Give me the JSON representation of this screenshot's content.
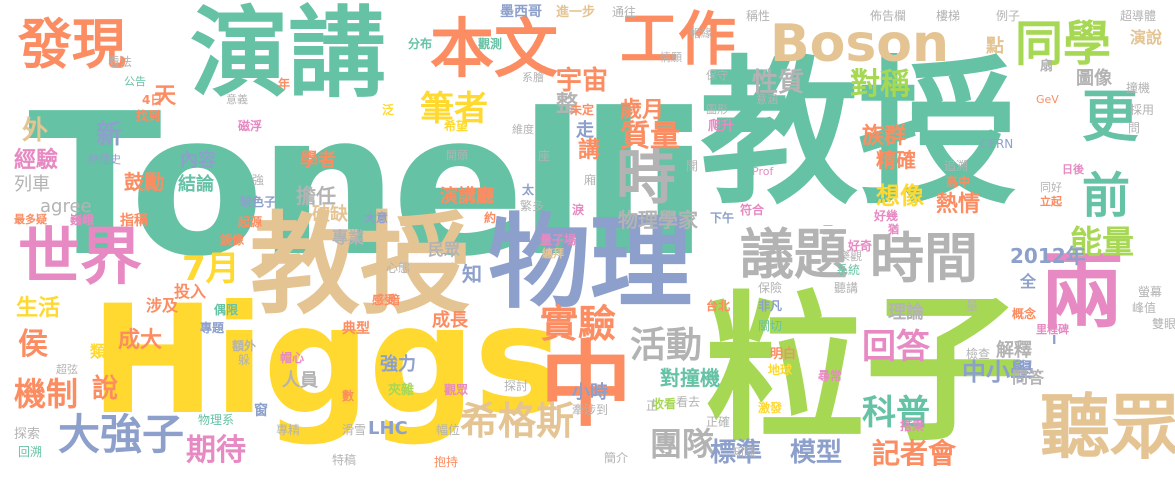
{
  "palette": {
    "green": "#66c2a5",
    "orange": "#fc8d62",
    "blue": "#8da0cb",
    "pink": "#e78ac3",
    "lime": "#a6d854",
    "yellow": "#ffd92f",
    "tan": "#e5c494",
    "gray": "#b3b3b3"
  },
  "words": [
    {
      "text": "Tonelli",
      "color": "green"
    },
    {
      "text": "Higgs",
      "color": "yellow"
    },
    {
      "text": "教授",
      "color": "green"
    },
    {
      "text": "粒子",
      "color": "lime"
    },
    {
      "text": "演講",
      "color": "green"
    },
    {
      "text": "物理",
      "color": "blue"
    },
    {
      "text": "教授",
      "color": "tan"
    },
    {
      "text": "本文",
      "color": "orange"
    },
    {
      "text": "工作",
      "color": "orange"
    },
    {
      "text": "發現",
      "color": "orange"
    },
    {
      "text": "Boson",
      "color": "tan"
    },
    {
      "text": "同學",
      "color": "lime"
    },
    {
      "text": "世界",
      "color": "pink"
    },
    {
      "text": "議題",
      "color": "gray"
    },
    {
      "text": "時間",
      "color": "gray"
    },
    {
      "text": "聽眾",
      "color": "tan"
    },
    {
      "text": "兩",
      "color": "pink"
    },
    {
      "text": "中",
      "color": "orange"
    },
    {
      "text": "時",
      "color": "gray"
    },
    {
      "text": "更",
      "color": "green"
    },
    {
      "text": "前",
      "color": "green"
    },
    {
      "text": "希格斯",
      "color": "tan"
    },
    {
      "text": "大強子",
      "color": "blue"
    },
    {
      "text": "實驗",
      "color": "orange"
    },
    {
      "text": "活動",
      "color": "gray"
    },
    {
      "text": "回答",
      "color": "pink"
    },
    {
      "text": "能量",
      "color": "lime"
    },
    {
      "text": "科普",
      "color": "green"
    },
    {
      "text": "團隊",
      "color": "gray"
    },
    {
      "text": "標準",
      "color": "blue"
    },
    {
      "text": "模型",
      "color": "blue"
    },
    {
      "text": "期待",
      "color": "pink"
    },
    {
      "text": "機制",
      "color": "orange"
    },
    {
      "text": "7月",
      "color": "yellow"
    },
    {
      "text": "筆者",
      "color": "yellow"
    },
    {
      "text": "質量",
      "color": "orange"
    },
    {
      "text": "對稱",
      "color": "lime"
    },
    {
      "text": "宇宙",
      "color": "orange"
    },
    {
      "text": "性質",
      "color": "gray"
    },
    {
      "text": "記者會",
      "color": "orange"
    },
    {
      "text": "中小學",
      "color": "blue"
    },
    {
      "text": "對撞機",
      "color": "green"
    },
    {
      "text": "2012年",
      "color": "blue"
    },
    {
      "text": "族群",
      "color": "orange"
    },
    {
      "text": "精確",
      "color": "orange"
    },
    {
      "text": "想像",
      "color": "yellow"
    },
    {
      "text": "熱情",
      "color": "orange"
    },
    {
      "text": "歲月",
      "color": "orange"
    },
    {
      "text": "物理學家",
      "color": "gray"
    },
    {
      "text": "演講廳",
      "color": "orange"
    },
    {
      "text": "經驗",
      "color": "pink"
    },
    {
      "text": "鼓勵",
      "color": "orange"
    },
    {
      "text": "結論",
      "color": "green"
    },
    {
      "text": "內容",
      "color": "blue"
    },
    {
      "text": "學者",
      "color": "orange"
    },
    {
      "text": "列車",
      "color": "gray"
    },
    {
      "text": "agree",
      "color": "gray"
    },
    {
      "text": "生活",
      "color": "yellow"
    },
    {
      "text": "侯",
      "color": "orange"
    },
    {
      "text": "說",
      "color": "orange"
    },
    {
      "text": "成大",
      "color": "orange"
    },
    {
      "text": "涉及",
      "color": "orange"
    },
    {
      "text": "投入",
      "color": "orange"
    },
    {
      "text": "擔任",
      "color": "gray"
    },
    {
      "text": "破缺",
      "color": "tan"
    },
    {
      "text": "專業",
      "color": "gray"
    },
    {
      "text": "民眾",
      "color": "gray"
    },
    {
      "text": "人員",
      "color": "gray"
    },
    {
      "text": "強力",
      "color": "blue"
    },
    {
      "text": "LHC",
      "color": "blue"
    },
    {
      "text": "小時",
      "color": "blue"
    },
    {
      "text": "成長",
      "color": "orange"
    },
    {
      "text": "知",
      "color": "blue"
    },
    {
      "text": "理論",
      "color": "gray"
    },
    {
      "text": "解釋",
      "color": "gray"
    },
    {
      "text": "問答",
      "color": "gray"
    },
    {
      "text": "新",
      "color": "blue"
    },
    {
      "text": "外",
      "color": "tan"
    },
    {
      "text": "天",
      "color": "orange"
    },
    {
      "text": "整",
      "color": "gray"
    },
    {
      "text": "走",
      "color": "blue"
    },
    {
      "text": "講",
      "color": "orange"
    },
    {
      "text": "圖像",
      "color": "gray"
    },
    {
      "text": "點",
      "color": "tan"
    },
    {
      "text": "演說",
      "color": "tan"
    },
    {
      "text": "墨西哥",
      "color": "blue"
    },
    {
      "text": "進一步",
      "color": "tan"
    },
    {
      "text": "通往",
      "color": "gray"
    },
    {
      "text": "看法",
      "color": "gray"
    },
    {
      "text": "分布",
      "color": "green"
    },
    {
      "text": "觀測",
      "color": "green"
    },
    {
      "text": "稱性",
      "color": "gray"
    },
    {
      "text": "佈告欄",
      "color": "gray"
    },
    {
      "text": "樓梯",
      "color": "gray"
    },
    {
      "text": "例子",
      "color": "gray"
    },
    {
      "text": "超導體",
      "color": "gray"
    },
    {
      "text": "撞機",
      "color": "gray"
    },
    {
      "text": "採用",
      "color": "gray"
    },
    {
      "text": "CERN",
      "color": "blue"
    },
    {
      "text": "Prof",
      "color": "pink"
    },
    {
      "text": "GeV",
      "color": "orange"
    },
    {
      "text": "公告",
      "color": "green"
    },
    {
      "text": "4日",
      "color": "orange"
    },
    {
      "text": "找到",
      "color": "orange"
    },
    {
      "text": "磁浮",
      "color": "pink"
    },
    {
      "text": "物理史",
      "color": "blue"
    },
    {
      "text": "最多疑",
      "color": "orange"
    },
    {
      "text": "巍峨",
      "color": "pink"
    },
    {
      "text": "指稱",
      "color": "orange"
    },
    {
      "text": "起源",
      "color": "orange"
    },
    {
      "text": "鏡像",
      "color": "orange"
    },
    {
      "text": "偶限",
      "color": "green"
    },
    {
      "text": "超弦",
      "color": "gray"
    },
    {
      "text": "類",
      "color": "yellow"
    },
    {
      "text": "專題",
      "color": "blue"
    },
    {
      "text": "額外",
      "color": "gray"
    },
    {
      "text": "典型",
      "color": "orange"
    },
    {
      "text": "探索",
      "color": "gray"
    },
    {
      "text": "回溯",
      "color": "green"
    },
    {
      "text": "物理系",
      "color": "green"
    },
    {
      "text": "專精",
      "color": "gray"
    },
    {
      "text": "滑雪",
      "color": "gray"
    },
    {
      "text": "特稿",
      "color": "gray"
    },
    {
      "text": "抱持",
      "color": "orange"
    },
    {
      "text": "數",
      "color": "orange"
    },
    {
      "text": "夾雜",
      "color": "lime"
    },
    {
      "text": "觀眾",
      "color": "pink"
    },
    {
      "text": "探討",
      "color": "gray"
    },
    {
      "text": "牽涉到",
      "color": "gray"
    },
    {
      "text": "簡介",
      "color": "gray"
    },
    {
      "text": "收看",
      "color": "lime"
    },
    {
      "text": "看去",
      "color": "gray"
    },
    {
      "text": "正確",
      "color": "gray"
    },
    {
      "text": "知識",
      "color": "gray"
    },
    {
      "text": "搭乘",
      "color": "pink"
    },
    {
      "text": "激發",
      "color": "yellow"
    },
    {
      "text": "地球",
      "color": "yellow"
    },
    {
      "text": "明白",
      "color": "orange"
    },
    {
      "text": "尋常",
      "color": "pink"
    },
    {
      "text": "檢查",
      "color": "gray"
    },
    {
      "text": "雙眼",
      "color": "gray"
    },
    {
      "text": "峰值",
      "color": "gray"
    },
    {
      "text": "螢幕",
      "color": "gray"
    },
    {
      "text": "里程碑",
      "color": "pink"
    },
    {
      "text": "概念",
      "color": "orange"
    },
    {
      "text": "聽講",
      "color": "gray"
    },
    {
      "text": "非凡",
      "color": "blue"
    },
    {
      "text": "系統",
      "color": "green"
    },
    {
      "text": "樂觀",
      "color": "gray"
    },
    {
      "text": "台北",
      "color": "orange"
    },
    {
      "text": "保險",
      "color": "gray"
    },
    {
      "text": "關切",
      "color": "green"
    },
    {
      "text": "心態",
      "color": "gray"
    },
    {
      "text": "暗",
      "color": "orange"
    },
    {
      "text": "感受",
      "color": "orange"
    },
    {
      "text": "量子場",
      "color": "pink"
    },
    {
      "text": "纏拜",
      "color": "tan"
    },
    {
      "text": "好奇",
      "color": "pink"
    },
    {
      "text": "符合",
      "color": "pink"
    },
    {
      "text": "下午",
      "color": "blue"
    },
    {
      "text": "好幾",
      "color": "pink"
    },
    {
      "text": "高中",
      "color": "orange"
    },
    {
      "text": "追溯",
      "color": "gray"
    },
    {
      "text": "同好",
      "color": "gray"
    },
    {
      "text": "立起",
      "color": "orange"
    },
    {
      "text": "日後",
      "color": "pink"
    },
    {
      "text": "問",
      "color": "gray"
    },
    {
      "text": "保守",
      "color": "gray"
    },
    {
      "text": "意義",
      "color": "gray"
    },
    {
      "text": "意涵",
      "color": "gray"
    },
    {
      "text": "圖形",
      "color": "gray"
    },
    {
      "text": "爬升",
      "color": "pink"
    },
    {
      "text": "情願",
      "color": "gray"
    },
    {
      "text": "帽緣",
      "color": "gray"
    },
    {
      "text": "系膾",
      "color": "gray"
    },
    {
      "text": "未定",
      "color": "orange"
    },
    {
      "text": "希望",
      "color": "yellow"
    },
    {
      "text": "維度",
      "color": "gray"
    },
    {
      "text": "開頭",
      "color": "gray"
    },
    {
      "text": "玻色子",
      "color": "blue"
    },
    {
      "text": "大意",
      "color": "blue"
    },
    {
      "text": "繁多",
      "color": "gray"
    },
    {
      "text": "淚",
      "color": "pink"
    },
    {
      "text": "太",
      "color": "blue"
    },
    {
      "text": "座",
      "color": "gray"
    },
    {
      "text": "廂",
      "color": "gray"
    },
    {
      "text": "幅位",
      "color": "gray"
    },
    {
      "text": "帽心",
      "color": "pink"
    },
    {
      "text": "扇",
      "color": "gray"
    },
    {
      "text": "正",
      "color": "gray"
    },
    {
      "text": "年",
      "color": "orange"
    },
    {
      "text": "泛",
      "color": "yellow"
    },
    {
      "text": "三",
      "color": "gray"
    },
    {
      "text": "約",
      "color": "orange"
    },
    {
      "text": "開",
      "color": "gray"
    },
    {
      "text": "強",
      "color": "gray"
    },
    {
      "text": "全",
      "color": "blue"
    },
    {
      "text": "躲",
      "color": "gray"
    },
    {
      "text": "窗",
      "color": "blue"
    },
    {
      "text": "猶",
      "color": "pink"
    },
    {
      "text": "量",
      "color": "gray"
    },
    {
      "text": "Ⅰ",
      "color": "blue"
    }
  ]
}
